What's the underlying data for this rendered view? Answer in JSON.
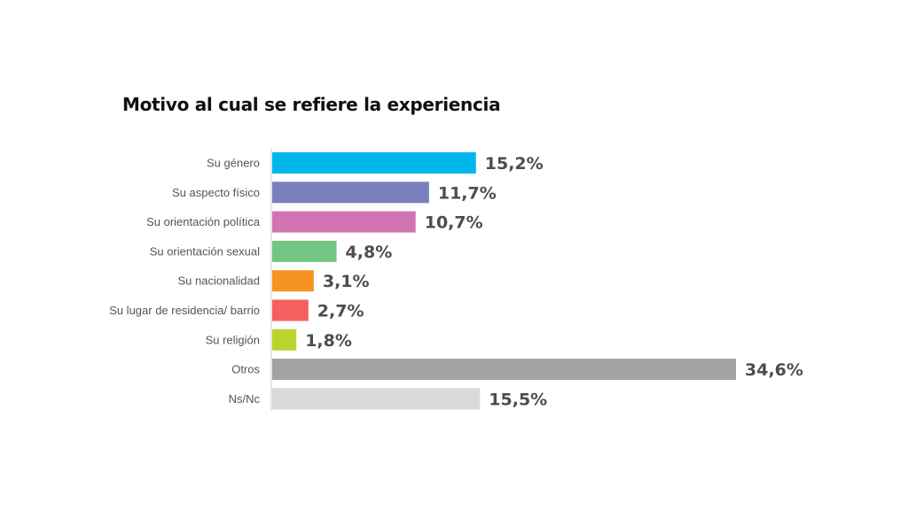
{
  "chart_data": {
    "type": "bar",
    "orientation": "horizontal",
    "title": "Motivo al cual se refiere la experiencia",
    "xlabel": "",
    "ylabel": "",
    "xlim": [
      0,
      34.6
    ],
    "grid": false,
    "categories": [
      "Su género",
      "Su aspecto físico",
      "Su orientación política",
      "Su orientación sexual",
      "Su nacionalidad",
      "Su lugar de residencia/ barrio",
      "Su religión",
      "Otros",
      "Ns/Nc"
    ],
    "values": [
      15.2,
      11.7,
      10.7,
      4.8,
      3.1,
      2.7,
      1.8,
      34.6,
      15.5
    ],
    "value_labels": [
      "15,2%",
      "11,7%",
      "10,7%",
      "4,8%",
      "3,1%",
      "2,7%",
      "1,8%",
      "34,6%",
      "15,5%"
    ],
    "colors": [
      "#00b6eb",
      "#7a7fbe",
      "#d173b2",
      "#73c584",
      "#f59222",
      "#f3605f",
      "#bad42c",
      "#a2a2a2",
      "#d9d9d9"
    ]
  }
}
